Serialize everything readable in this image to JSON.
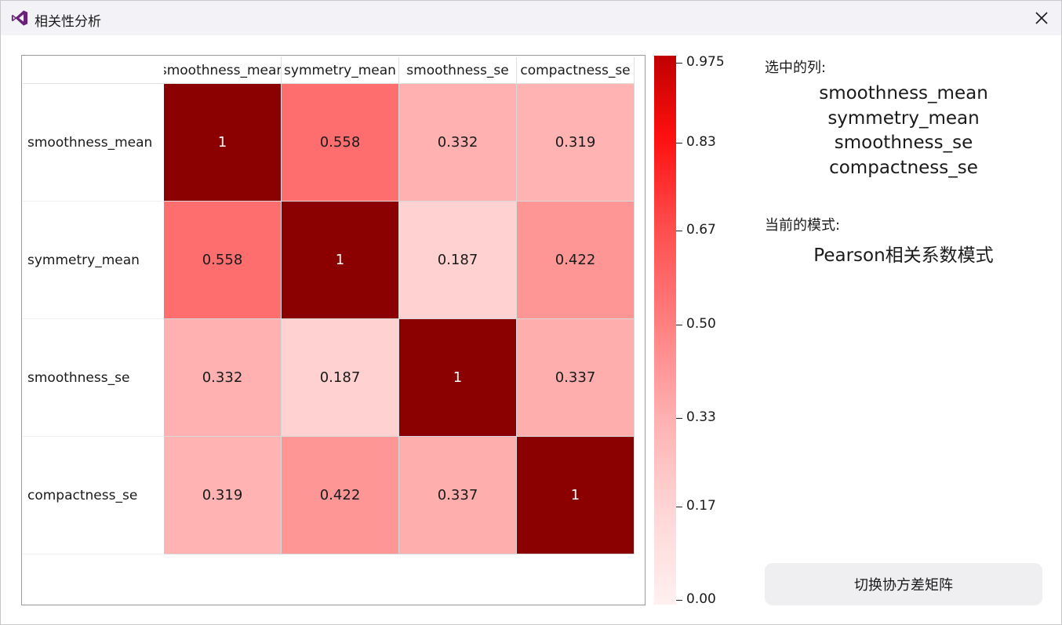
{
  "window": {
    "title": "相关性分析",
    "icon": "visual-studio-logo-icon",
    "close_icon": "close-icon"
  },
  "heatmap": {
    "columns": [
      "smoothness_mean",
      "symmetry_mean",
      "smoothness_se",
      "compactness_se"
    ],
    "rows": [
      "smoothness_mean",
      "symmetry_mean",
      "smoothness_se",
      "compactness_se"
    ],
    "cells": [
      [
        "1",
        "0.558",
        "0.332",
        "0.319"
      ],
      [
        "0.558",
        "1",
        "0.187",
        "0.422"
      ],
      [
        "0.332",
        "0.187",
        "1",
        "0.337"
      ],
      [
        "0.319",
        "0.422",
        "0.337",
        "1"
      ]
    ],
    "values": [
      [
        1,
        0.558,
        0.332,
        0.319
      ],
      [
        0.558,
        1,
        0.187,
        0.422
      ],
      [
        0.332,
        0.187,
        1,
        0.337
      ],
      [
        0.319,
        0.422,
        0.337,
        1
      ]
    ]
  },
  "colorbar": {
    "min": 0.0,
    "max": 0.975,
    "ticks": [
      "0.975",
      "0.83",
      "0.67",
      "0.50",
      "0.33",
      "0.17",
      "0.00"
    ],
    "tick_values": [
      0.975,
      0.83,
      0.67,
      0.5,
      0.33,
      0.17,
      0.0
    ],
    "colors": {
      "low": "#fff0f0",
      "mid": "#ff8080",
      "high_bright": "#ff0000",
      "top": "#c00000",
      "max_cell": "#8b0000"
    }
  },
  "side": {
    "selected_label": "选中的列:",
    "selected": [
      "smoothness_mean",
      "symmetry_mean",
      "smoothness_se",
      "compactness_se"
    ],
    "mode_label": "当前的模式:",
    "mode_value": "Pearson相关系数模式",
    "switch_button": "切换协方差矩阵"
  }
}
